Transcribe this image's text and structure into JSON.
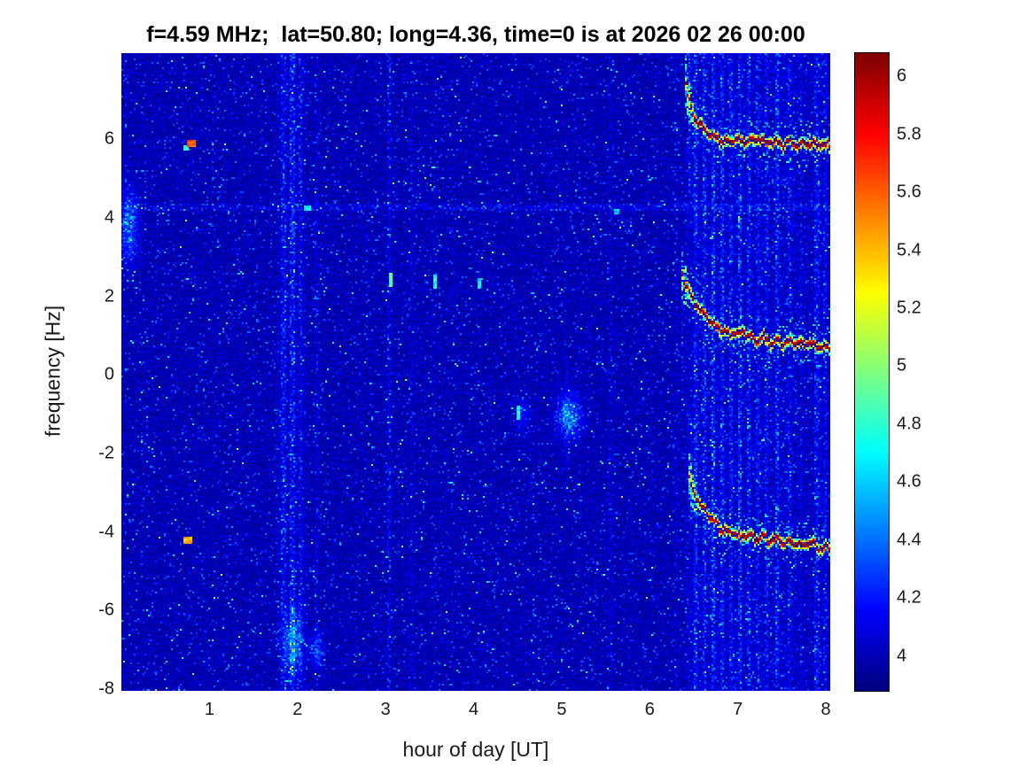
{
  "chart_data": {
    "type": "heatmap",
    "title": "f=4.59 MHz;  lat=50.80; long=4.36, time=0 is at 2026 02 26 00:00",
    "xlabel": "hour of day [UT]",
    "ylabel": "frequency [Hz]",
    "xlim": [
      0,
      8.05
    ],
    "ylim": [
      -8.05,
      8.2
    ],
    "xticks": [
      1,
      2,
      3,
      4,
      5,
      6,
      7,
      8
    ],
    "yticks": [
      -8,
      -6,
      -4,
      -2,
      0,
      2,
      4,
      6
    ],
    "colormap": "jet",
    "clim": [
      3.88,
      6.08
    ],
    "colorbar_ticks": [
      4,
      4.2,
      4.4,
      4.6,
      4.8,
      5,
      5.2,
      5.4,
      5.6,
      5.8,
      6
    ],
    "noise_floor": 4.0,
    "doppler_traces": [
      {
        "name": "upper-trace",
        "points": [
          [
            6.4,
            7.6
          ],
          [
            6.43,
            7.15
          ],
          [
            6.47,
            6.8
          ],
          [
            6.52,
            6.55
          ],
          [
            6.58,
            6.35
          ],
          [
            6.65,
            6.2
          ],
          [
            6.72,
            6.1
          ],
          [
            6.8,
            6.02
          ],
          [
            6.9,
            5.98
          ],
          [
            7.0,
            6.02
          ],
          [
            7.08,
            5.95
          ],
          [
            7.16,
            6.0
          ],
          [
            7.25,
            6.05
          ],
          [
            7.33,
            5.92
          ],
          [
            7.42,
            5.98
          ],
          [
            7.5,
            5.9
          ],
          [
            7.58,
            5.97
          ],
          [
            7.66,
            5.9
          ],
          [
            7.75,
            5.95
          ],
          [
            7.83,
            5.88
          ],
          [
            7.92,
            5.93
          ],
          [
            8.0,
            5.88
          ]
        ]
      },
      {
        "name": "middle-trace",
        "points": [
          [
            6.35,
            2.9
          ],
          [
            6.38,
            2.55
          ],
          [
            6.42,
            2.3
          ],
          [
            6.47,
            2.05
          ],
          [
            6.53,
            1.8
          ],
          [
            6.6,
            1.6
          ],
          [
            6.68,
            1.4
          ],
          [
            6.76,
            1.25
          ],
          [
            6.85,
            1.12
          ],
          [
            6.95,
            1.05
          ],
          [
            7.05,
            1.15
          ],
          [
            7.12,
            1.0
          ],
          [
            7.2,
            0.92
          ],
          [
            7.28,
            1.0
          ],
          [
            7.36,
            0.85
          ],
          [
            7.45,
            0.9
          ],
          [
            7.53,
            0.82
          ],
          [
            7.62,
            0.88
          ],
          [
            7.7,
            0.78
          ],
          [
            7.8,
            0.85
          ],
          [
            7.9,
            0.75
          ],
          [
            8.0,
            0.72
          ]
        ]
      },
      {
        "name": "lower-trace",
        "points": [
          [
            6.44,
            -2.55
          ],
          [
            6.48,
            -2.85
          ],
          [
            6.53,
            -3.1
          ],
          [
            6.59,
            -3.35
          ],
          [
            6.66,
            -3.55
          ],
          [
            6.74,
            -3.75
          ],
          [
            6.83,
            -3.9
          ],
          [
            6.93,
            -4.0
          ],
          [
            7.03,
            -4.1
          ],
          [
            7.12,
            -4.05
          ],
          [
            7.2,
            -4.18
          ],
          [
            7.28,
            -4.1
          ],
          [
            7.36,
            -4.22
          ],
          [
            7.45,
            -4.15
          ],
          [
            7.53,
            -4.28
          ],
          [
            7.62,
            -4.2
          ],
          [
            7.7,
            -4.3
          ],
          [
            7.8,
            -4.25
          ],
          [
            7.9,
            -4.35
          ],
          [
            8.0,
            -4.4
          ]
        ]
      }
    ],
    "vertical_stripes": [
      {
        "x": 1.84,
        "hw": 0.025,
        "a": 0.45
      },
      {
        "x": 1.95,
        "hw": 0.03,
        "a": 0.55
      },
      {
        "x": 2.03,
        "hw": 0.02,
        "a": 0.4
      },
      {
        "x": 2.22,
        "hw": 0.018,
        "a": 0.22
      },
      {
        "x": 3.04,
        "hw": 0.02,
        "a": 0.35
      },
      {
        "x": 3.3,
        "hw": 0.015,
        "a": 0.15
      },
      {
        "x": 3.55,
        "hw": 0.015,
        "a": 0.15
      },
      {
        "x": 5.05,
        "hw": 0.02,
        "a": 0.2,
        "y0": -2.5,
        "y1": 0.5
      },
      {
        "x": 5.55,
        "hw": 0.018,
        "a": 0.18
      },
      {
        "x": 6.3,
        "hw": 0.02,
        "a": 0.18
      },
      {
        "x": 6.45,
        "hw": 0.02,
        "a": 0.5,
        "y0": 4.5,
        "y1": 8.2
      },
      {
        "x": 6.37,
        "hw": 0.018,
        "a": 0.45,
        "y0": -0.5,
        "y1": 3.4
      },
      {
        "x": 6.47,
        "hw": 0.018,
        "a": 0.4,
        "y0": -3.6,
        "y1": -1.0
      },
      {
        "x": 6.52,
        "hw": 0.022,
        "a": 0.5
      },
      {
        "x": 6.62,
        "hw": 0.02,
        "a": 0.48
      },
      {
        "x": 6.72,
        "hw": 0.028,
        "a": 0.6
      },
      {
        "x": 6.82,
        "hw": 0.02,
        "a": 0.45
      },
      {
        "x": 6.92,
        "hw": 0.02,
        "a": 0.42
      },
      {
        "x": 7.02,
        "hw": 0.024,
        "a": 0.55
      },
      {
        "x": 7.12,
        "hw": 0.02,
        "a": 0.45
      },
      {
        "x": 7.22,
        "hw": 0.018,
        "a": 0.32
      },
      {
        "x": 7.32,
        "hw": 0.02,
        "a": 0.38
      },
      {
        "x": 7.45,
        "hw": 0.026,
        "a": 0.5
      },
      {
        "x": 7.58,
        "hw": 0.02,
        "a": 0.32
      },
      {
        "x": 7.72,
        "hw": 0.018,
        "a": 0.28
      },
      {
        "x": 7.9,
        "hw": 0.024,
        "a": 0.45
      },
      {
        "x": 7.98,
        "hw": 0.02,
        "a": 0.35
      }
    ],
    "regions": [
      {
        "x0": 6.4,
        "x1": 7.68,
        "a": 0.15
      },
      {
        "x0": 7.68,
        "x1": 8.05,
        "a": 0.09
      },
      {
        "x0": 1.75,
        "x1": 2.12,
        "a": 0.07
      }
    ],
    "horizontal_band": {
      "y": 4.27,
      "halfwidth": 0.09,
      "intensity": 0.2
    },
    "blobs": [
      {
        "x": 0.08,
        "y": 3.8,
        "sx": 0.07,
        "sy": 0.55,
        "a": 0.6
      },
      {
        "x": 1.95,
        "y": -6.8,
        "sx": 0.07,
        "sy": 0.5,
        "a": 0.65
      },
      {
        "x": 2.22,
        "y": -7.0,
        "sx": 0.05,
        "sy": 0.3,
        "a": 0.4
      },
      {
        "x": 5.08,
        "y": -1.05,
        "sx": 0.09,
        "sy": 0.35,
        "a": 0.7
      },
      {
        "x": 4.55,
        "y": -1.0,
        "sx": 0.05,
        "sy": 0.25,
        "a": 0.35
      }
    ],
    "speckles": [
      {
        "x": 0.78,
        "y": 5.92,
        "w": 0.08,
        "h": 0.14,
        "v": 5.75
      },
      {
        "x": 0.72,
        "y": 5.8,
        "w": 0.05,
        "h": 0.1,
        "v": 4.9
      },
      {
        "x": 0.74,
        "y": -4.2,
        "w": 0.07,
        "h": 0.12,
        "v": 5.55
      },
      {
        "x": 3.05,
        "y": 2.45,
        "w": 0.03,
        "h": 0.35,
        "v": 5.0
      },
      {
        "x": 3.55,
        "y": 2.4,
        "w": 0.03,
        "h": 0.3,
        "v": 4.85
      },
      {
        "x": 4.05,
        "y": 2.35,
        "w": 0.025,
        "h": 0.25,
        "v": 4.75
      },
      {
        "x": 4.5,
        "y": -0.95,
        "w": 0.025,
        "h": 0.3,
        "v": 4.85
      },
      {
        "x": 2.1,
        "y": 4.27,
        "w": 0.05,
        "h": 0.1,
        "v": 4.8
      },
      {
        "x": 5.62,
        "y": 4.2,
        "w": 0.04,
        "h": 0.1,
        "v": 4.7
      }
    ]
  }
}
